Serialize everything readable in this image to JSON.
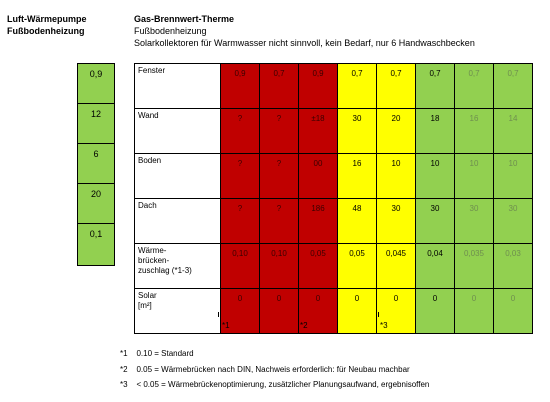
{
  "headers": {
    "left_title": "Luft-Wärmepumpe",
    "left_sub": "Fußbodenheizung",
    "right_title": "Gas-Brennwert-Therme",
    "right_sub": "Fußbodenheizung",
    "right_note": "Solarkollektoren für Warmwasser nicht sinnvoll, kein Bedarf, nur 6 Handwaschbecken"
  },
  "left_values": [
    "0,9",
    "12",
    "6",
    "20",
    "0,1"
  ],
  "rows": [
    {
      "label": "Fenster",
      "cells": [
        "0,9",
        "0,7",
        "0,9",
        "0,7",
        "0,7",
        "0,7",
        "0,7",
        "0,7"
      ]
    },
    {
      "label": "Wand",
      "cells": [
        "?",
        "?",
        "±18",
        "30",
        "20",
        "18",
        "16",
        "14"
      ]
    },
    {
      "label": "Boden",
      "cells": [
        "?",
        "?",
        "00",
        "16",
        "10",
        "10",
        "10",
        "10"
      ]
    },
    {
      "label": "Dach",
      "cells": [
        "?",
        "?",
        "186",
        "48",
        "30",
        "30",
        "30",
        "30"
      ]
    },
    {
      "label": "Wärme-\nbrücken-\nzuschlag (*1-3)",
      "cells": [
        "0,10",
        "0,10",
        "0,05",
        "0,05",
        "0,045",
        "0,04",
        "0,035",
        "0,03"
      ]
    },
    {
      "label": "Solar\n[m²]",
      "cells": [
        "0",
        "0",
        "0",
        "0",
        "0",
        "0",
        "0",
        "0"
      ]
    }
  ],
  "column_colors": [
    "red",
    "red",
    "red",
    "yellow",
    "yellow",
    "green",
    "green-muted",
    "green-muted"
  ],
  "colors": {
    "red": "#c00000",
    "yellow": "#ffff00",
    "green": "#92d050"
  },
  "markers": [
    "*1",
    "*2",
    "*3"
  ],
  "footnotes": [
    {
      "mark": "*1",
      "text": "0.10 = Standard"
    },
    {
      "mark": "*2",
      "text": "0.05 = Wärmebrücken nach DIN, Nachweis erforderlich: für Neubau machbar"
    },
    {
      "mark": "*3",
      "text": "< 0.05 = Wärmebrückenoptimierung, zusätzlicher Planungsaufwand, ergebnisoffen"
    }
  ]
}
